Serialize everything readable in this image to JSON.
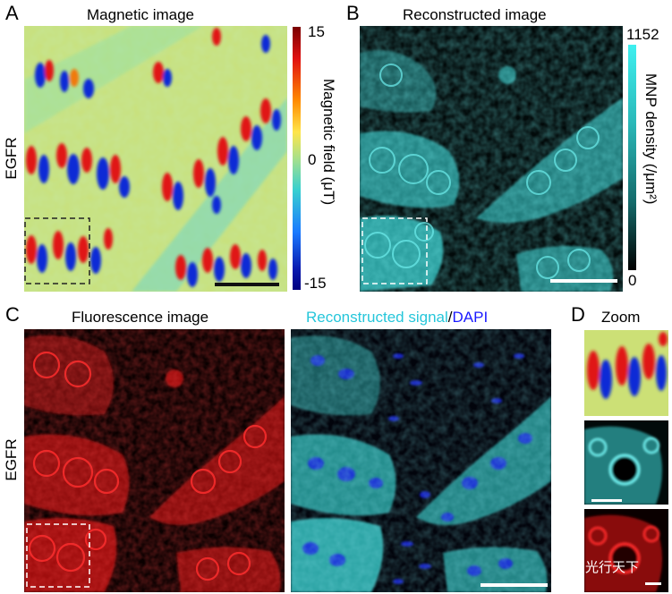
{
  "panels": {
    "a": {
      "letter": "A",
      "title": "Magnetic image",
      "side_label": "EGFR"
    },
    "b": {
      "letter": "B",
      "title": "Reconstructed image"
    },
    "c": {
      "letter": "C",
      "title": "Fluorescence image",
      "side_label": "EGFR",
      "overlay_title_part1": "Reconstructed signal",
      "overlay_sep": "/",
      "overlay_title_part2": "DAPI"
    },
    "d": {
      "letter": "D",
      "title": "Zoom"
    }
  },
  "colorbar_a": {
    "label": "Magnetic field (μT)",
    "max": "15",
    "mid": "0",
    "min": "-15"
  },
  "colorbar_b": {
    "label": "MNP density (/μm²)",
    "max": "1152",
    "min": "0"
  },
  "watermark": "光行天下",
  "colors": {
    "cyan": "#2fd6d6",
    "red": "#e01010",
    "blue_text": "#1a1aff",
    "cyan_text": "#26c6da"
  }
}
